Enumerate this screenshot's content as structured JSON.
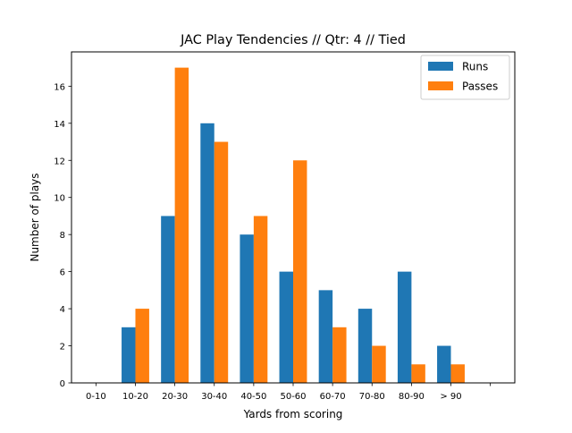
{
  "chart_data": {
    "type": "bar",
    "title": "JAC Play Tendencies // Qtr: 4 // Tied",
    "xlabel": "Yards from scoring",
    "ylabel": "Number of plays",
    "categories": [
      "0-10",
      "10-20",
      "20-30",
      "30-40",
      "40-50",
      "50-60",
      "60-70",
      "70-80",
      "80-90",
      "> 90",
      ""
    ],
    "series": [
      {
        "name": "Runs",
        "color": "#1f77b4",
        "values": [
          0,
          3,
          9,
          14,
          8,
          6,
          5,
          4,
          6,
          2,
          0
        ]
      },
      {
        "name": "Passes",
        "color": "#ff7f0e",
        "values": [
          0,
          4,
          17,
          13,
          9,
          12,
          3,
          2,
          1,
          1,
          0
        ]
      }
    ],
    "yticks": [
      0,
      2,
      4,
      6,
      8,
      10,
      12,
      14,
      16
    ],
    "ylim": [
      0,
      17.85
    ],
    "grid": false,
    "legend_position": "top-right"
  }
}
